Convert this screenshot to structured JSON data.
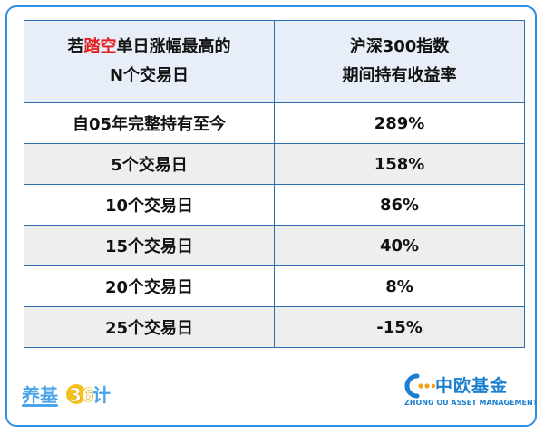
{
  "table": {
    "header": {
      "col1_line1_prefix": "若",
      "col1_line1_highlight": "踏空",
      "col1_line1_suffix": "单日涨幅最高的",
      "col1_line2": "N个交易日",
      "col2_line1": "沪深300指数",
      "col2_line2": "期间持有收益率"
    },
    "rows": [
      {
        "label": "自05年完整持有至今",
        "value": "289%"
      },
      {
        "label": "5个交易日",
        "value": "158%"
      },
      {
        "label": "10个交易日",
        "value": "86%"
      },
      {
        "label": "15个交易日",
        "value": "40%"
      },
      {
        "label": "20个交易日",
        "value": "8%"
      },
      {
        "label": "25个交易日",
        "value": "-15%"
      }
    ]
  },
  "colors": {
    "highlight_red": "#e02020",
    "negative_green": "#2eaa55",
    "border_blue": "#2e6fb0",
    "brand_blue": "#1a7fd0"
  },
  "footer": {
    "left_logo": {
      "text": "养基",
      "number": "36",
      "suffix": "计"
    },
    "right_logo": {
      "name_cn": "中欧基金",
      "name_en": "ZHONG OU ASSET MANAGEMENT"
    }
  }
}
